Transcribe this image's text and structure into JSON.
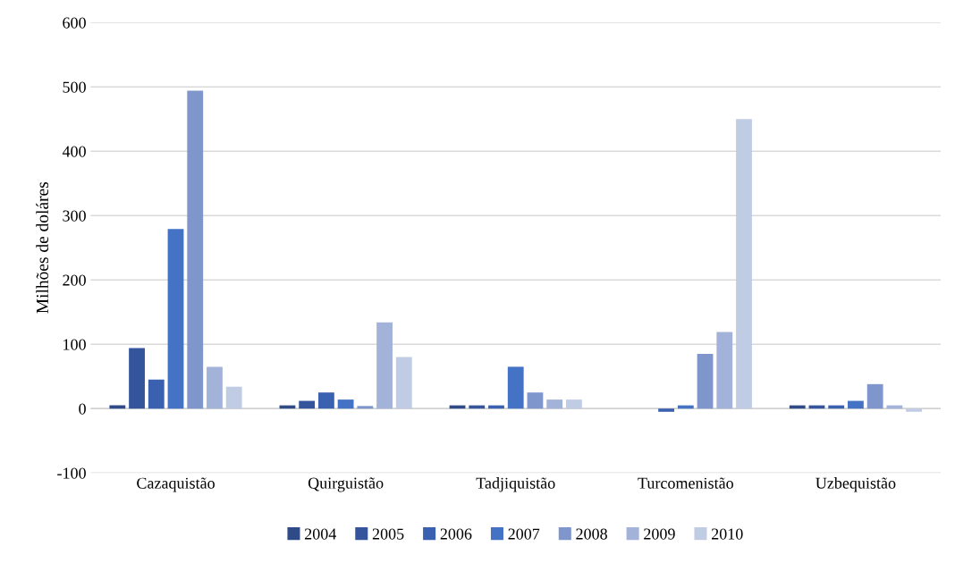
{
  "chart_data": {
    "type": "bar",
    "ylabel": "Milhões de doláres",
    "categories": [
      "Cazaquistão",
      "Quirguistão",
      "Tadjiquistão",
      "Turcomenistão",
      "Uzbequistão"
    ],
    "series": [
      {
        "name": "2004",
        "color": "#2e4a87",
        "values": [
          5,
          5,
          5,
          null,
          5
        ]
      },
      {
        "name": "2005",
        "color": "#34559c",
        "values": [
          94,
          12,
          5,
          null,
          5
        ]
      },
      {
        "name": "2006",
        "color": "#3a60b0",
        "values": [
          45,
          25,
          5,
          -5,
          5
        ]
      },
      {
        "name": "2007",
        "color": "#4472c4",
        "values": [
          279,
          14,
          65,
          5,
          12
        ]
      },
      {
        "name": "2008",
        "color": "#7f96cc",
        "values": [
          494,
          4,
          25,
          85,
          38
        ]
      },
      {
        "name": "2009",
        "color": "#a3b2d8",
        "values": [
          65,
          134,
          14,
          119,
          5
        ]
      },
      {
        "name": "2010",
        "color": "#c0cbe4",
        "values": [
          34,
          80,
          14,
          450,
          -5
        ]
      }
    ],
    "ylim": [
      -100,
      600
    ],
    "yticks": [
      -100,
      0,
      100,
      200,
      300,
      400,
      500,
      600
    ],
    "grid": "y",
    "legend": "bottom"
  }
}
